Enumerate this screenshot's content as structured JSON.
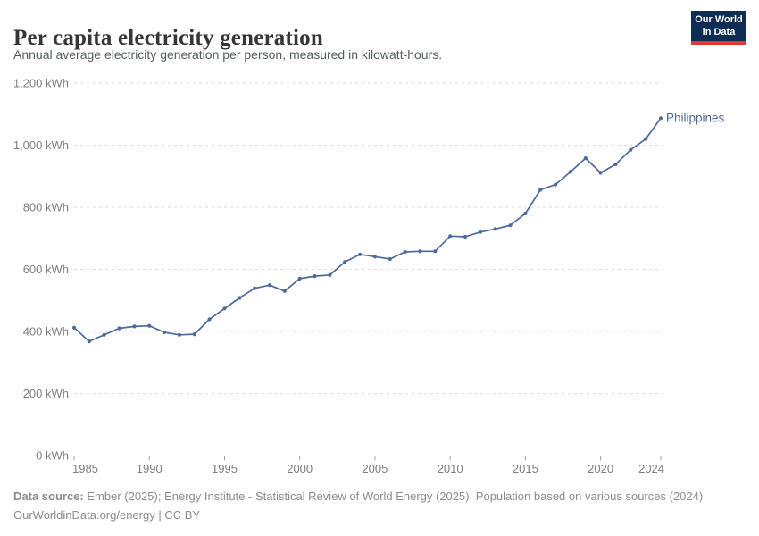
{
  "header": {
    "title": "Per capita electricity generation",
    "subtitle": "Annual average electricity generation per person, measured in kilowatt-hours."
  },
  "logo": {
    "line1": "Our World",
    "line2": "in Data",
    "background_color": "#0d2d52",
    "accent_color": "#dc3a34"
  },
  "chart_data": {
    "type": "line",
    "title": "Per capita electricity generation",
    "unit": "kWh",
    "x": [
      1985,
      1986,
      1987,
      1988,
      1989,
      1990,
      1991,
      1992,
      1993,
      1994,
      1995,
      1996,
      1997,
      1998,
      1999,
      2000,
      2001,
      2002,
      2003,
      2004,
      2005,
      2006,
      2007,
      2008,
      2009,
      2010,
      2011,
      2012,
      2013,
      2014,
      2015,
      2016,
      2017,
      2018,
      2019,
      2020,
      2021,
      2022,
      2023,
      2024
    ],
    "series": [
      {
        "name": "Philippines",
        "color": "#4c6a9c",
        "values": [
          412,
          368,
          389,
          410,
          416,
          418,
          397,
          389,
          391,
          439,
          474,
          508,
          539,
          549,
          530,
          570,
          578,
          582,
          624,
          648,
          641,
          633,
          656,
          658,
          658,
          707,
          705,
          720,
          730,
          742,
          780,
          856,
          873,
          914,
          958,
          911,
          938,
          985,
          1020,
          1087
        ]
      }
    ],
    "ylim": [
      0,
      1200
    ],
    "y_ticks": [
      0,
      200,
      400,
      600,
      800,
      1000,
      1200
    ],
    "y_tick_suffix": " kWh",
    "x_ticks": [
      1985,
      1990,
      1995,
      2000,
      2005,
      2010,
      2015,
      2020,
      2024
    ],
    "grid": "horizontal-dashed",
    "legend_position": "end-of-line-label",
    "colors": {
      "gridline": "#dcdcdc",
      "axis_line": "#a3a3a3",
      "tick_label": "#7f7f7f"
    }
  },
  "footer": {
    "datasource_label": "Data source:",
    "datasource_text": " Ember (2025); Energy Institute - Statistical Review of World Energy (2025); Population based on various sources (2024)",
    "license": "OurWorldinData.org/energy | CC BY"
  }
}
